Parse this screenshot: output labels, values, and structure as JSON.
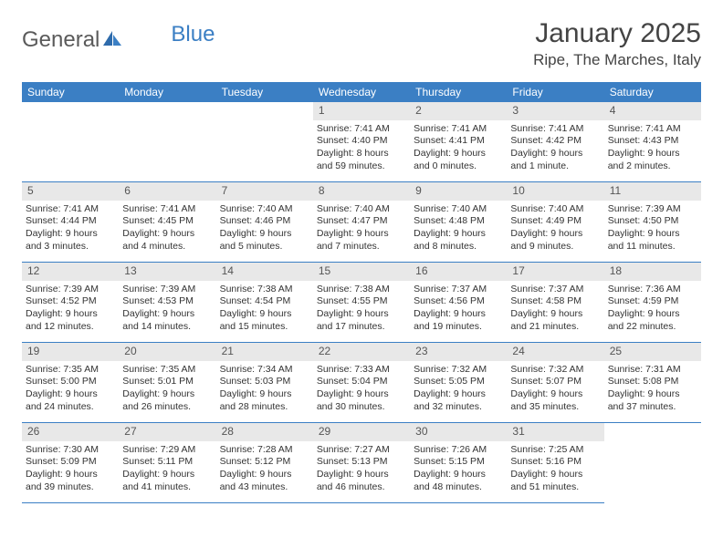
{
  "logo": {
    "text1": "General",
    "text2": "Blue"
  },
  "title": "January 2025",
  "location": "Ripe, The Marches, Italy",
  "day_names": [
    "Sunday",
    "Monday",
    "Tuesday",
    "Wednesday",
    "Thursday",
    "Friday",
    "Saturday"
  ],
  "colors": {
    "header_bg": "#3b7fc4",
    "daynum_bg": "#e8e8e8",
    "border": "#3b7fc4",
    "text": "#333333"
  },
  "grid": {
    "leading_blanks": 3,
    "days": [
      {
        "n": "1",
        "sr": "7:41 AM",
        "ss": "4:40 PM",
        "dl": "8 hours and 59 minutes."
      },
      {
        "n": "2",
        "sr": "7:41 AM",
        "ss": "4:41 PM",
        "dl": "9 hours and 0 minutes."
      },
      {
        "n": "3",
        "sr": "7:41 AM",
        "ss": "4:42 PM",
        "dl": "9 hours and 1 minute."
      },
      {
        "n": "4",
        "sr": "7:41 AM",
        "ss": "4:43 PM",
        "dl": "9 hours and 2 minutes."
      },
      {
        "n": "5",
        "sr": "7:41 AM",
        "ss": "4:44 PM",
        "dl": "9 hours and 3 minutes."
      },
      {
        "n": "6",
        "sr": "7:41 AM",
        "ss": "4:45 PM",
        "dl": "9 hours and 4 minutes."
      },
      {
        "n": "7",
        "sr": "7:40 AM",
        "ss": "4:46 PM",
        "dl": "9 hours and 5 minutes."
      },
      {
        "n": "8",
        "sr": "7:40 AM",
        "ss": "4:47 PM",
        "dl": "9 hours and 7 minutes."
      },
      {
        "n": "9",
        "sr": "7:40 AM",
        "ss": "4:48 PM",
        "dl": "9 hours and 8 minutes."
      },
      {
        "n": "10",
        "sr": "7:40 AM",
        "ss": "4:49 PM",
        "dl": "9 hours and 9 minutes."
      },
      {
        "n": "11",
        "sr": "7:39 AM",
        "ss": "4:50 PM",
        "dl": "9 hours and 11 minutes."
      },
      {
        "n": "12",
        "sr": "7:39 AM",
        "ss": "4:52 PM",
        "dl": "9 hours and 12 minutes."
      },
      {
        "n": "13",
        "sr": "7:39 AM",
        "ss": "4:53 PM",
        "dl": "9 hours and 14 minutes."
      },
      {
        "n": "14",
        "sr": "7:38 AM",
        "ss": "4:54 PM",
        "dl": "9 hours and 15 minutes."
      },
      {
        "n": "15",
        "sr": "7:38 AM",
        "ss": "4:55 PM",
        "dl": "9 hours and 17 minutes."
      },
      {
        "n": "16",
        "sr": "7:37 AM",
        "ss": "4:56 PM",
        "dl": "9 hours and 19 minutes."
      },
      {
        "n": "17",
        "sr": "7:37 AM",
        "ss": "4:58 PM",
        "dl": "9 hours and 21 minutes."
      },
      {
        "n": "18",
        "sr": "7:36 AM",
        "ss": "4:59 PM",
        "dl": "9 hours and 22 minutes."
      },
      {
        "n": "19",
        "sr": "7:35 AM",
        "ss": "5:00 PM",
        "dl": "9 hours and 24 minutes."
      },
      {
        "n": "20",
        "sr": "7:35 AM",
        "ss": "5:01 PM",
        "dl": "9 hours and 26 minutes."
      },
      {
        "n": "21",
        "sr": "7:34 AM",
        "ss": "5:03 PM",
        "dl": "9 hours and 28 minutes."
      },
      {
        "n": "22",
        "sr": "7:33 AM",
        "ss": "5:04 PM",
        "dl": "9 hours and 30 minutes."
      },
      {
        "n": "23",
        "sr": "7:32 AM",
        "ss": "5:05 PM",
        "dl": "9 hours and 32 minutes."
      },
      {
        "n": "24",
        "sr": "7:32 AM",
        "ss": "5:07 PM",
        "dl": "9 hours and 35 minutes."
      },
      {
        "n": "25",
        "sr": "7:31 AM",
        "ss": "5:08 PM",
        "dl": "9 hours and 37 minutes."
      },
      {
        "n": "26",
        "sr": "7:30 AM",
        "ss": "5:09 PM",
        "dl": "9 hours and 39 minutes."
      },
      {
        "n": "27",
        "sr": "7:29 AM",
        "ss": "5:11 PM",
        "dl": "9 hours and 41 minutes."
      },
      {
        "n": "28",
        "sr": "7:28 AM",
        "ss": "5:12 PM",
        "dl": "9 hours and 43 minutes."
      },
      {
        "n": "29",
        "sr": "7:27 AM",
        "ss": "5:13 PM",
        "dl": "9 hours and 46 minutes."
      },
      {
        "n": "30",
        "sr": "7:26 AM",
        "ss": "5:15 PM",
        "dl": "9 hours and 48 minutes."
      },
      {
        "n": "31",
        "sr": "7:25 AM",
        "ss": "5:16 PM",
        "dl": "9 hours and 51 minutes."
      }
    ]
  },
  "labels": {
    "sunrise": "Sunrise:",
    "sunset": "Sunset:",
    "daylight": "Daylight:"
  }
}
